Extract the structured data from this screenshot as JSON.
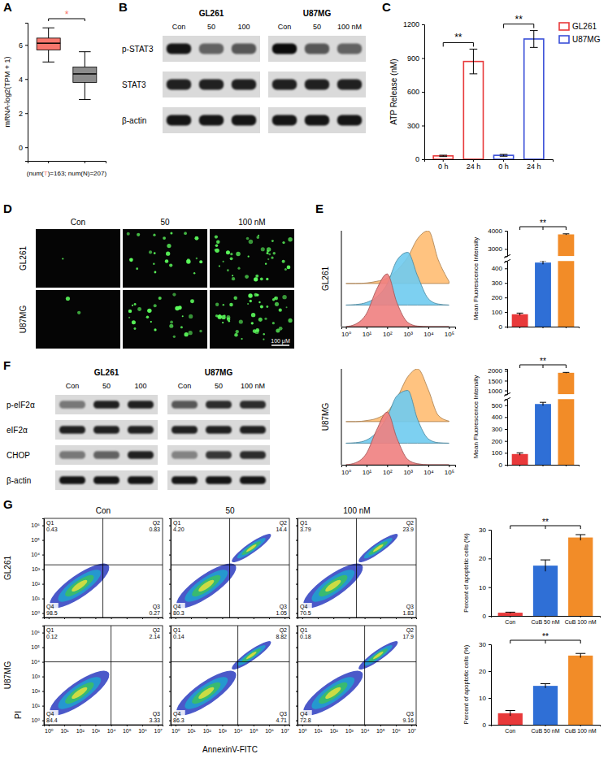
{
  "chart_data": [
    {
      "panel": "A",
      "type": "box",
      "ylabel": "mRNA-log2(TPM + 1)",
      "xlabel_parts": [
        "(num(",
        "T",
        ")=163; num(N)=207)"
      ],
      "categories": [
        null,
        null
      ],
      "boxes": [
        {
          "color": "#f8766d",
          "low": 5,
          "q1": 5.7,
          "median": 6.1,
          "q3": 6.4,
          "high": 7
        },
        {
          "color": "#8c8c8c",
          "low": 2.8,
          "q1": 3.8,
          "median": 4.3,
          "q3": 4.7,
          "high": 5.6
        }
      ],
      "ylim": [
        -0.8,
        7.3
      ],
      "yticks": [
        0,
        2,
        4,
        6
      ],
      "annotations": [
        "*"
      ]
    },
    {
      "panel": "B",
      "type": "blot",
      "groups": [
        {
          "name": "GL261",
          "lanes": [
            "Con",
            "50",
            "100"
          ]
        },
        {
          "name": "U87MG",
          "lanes": [
            "Con",
            "50",
            "100 nM"
          ]
        }
      ],
      "rows": [
        "p-STAT3",
        "STAT3",
        "β-actin"
      ],
      "band_intensity": [
        [
          0.9,
          0.55,
          0.6,
          0.95,
          0.6,
          0.55
        ],
        [
          0.85,
          0.85,
          0.85,
          0.85,
          0.85,
          0.85
        ],
        [
          0.9,
          0.9,
          0.9,
          0.9,
          0.9,
          0.9
        ]
      ]
    },
    {
      "panel": "C",
      "type": "bar",
      "ylabel": "ATP Release (nM)",
      "categories": [
        "0 h",
        "24 h",
        "0 h",
        "24 h"
      ],
      "series": [
        {
          "name": "GL261",
          "color": "#e8393a",
          "values": [
            30,
            870,
            null,
            null
          ],
          "errors": [
            6,
            110,
            null,
            null
          ]
        },
        {
          "name": "U87MG",
          "color": "#3a4fd8",
          "values": [
            null,
            null,
            35,
            1070
          ],
          "errors": [
            null,
            null,
            8,
            75
          ]
        }
      ],
      "ylim": [
        0,
        1200
      ],
      "yticks": [
        0,
        300,
        600,
        900,
        1200
      ],
      "legend": "top-right",
      "annotations": [
        "**",
        "**"
      ]
    },
    {
      "panel": "D",
      "type": "image",
      "columns": [
        "Con",
        "50",
        "100 nM"
      ],
      "rows": [
        "GL261",
        "U87MG"
      ],
      "cells": [
        [
          1,
          22,
          40
        ],
        [
          2,
          26,
          45
        ]
      ],
      "scale_bar": "100 μM"
    },
    {
      "panel": "E",
      "type": "area",
      "title": "GL261",
      "x": [
        1,
        3,
        10,
        30,
        100,
        300,
        1000,
        3000,
        10000,
        30000,
        100000
      ],
      "series": [
        {
          "color": "#f07f7f",
          "values": [
            0,
            5,
            25,
            70,
            100,
            45,
            8,
            1,
            0,
            0,
            0
          ]
        },
        {
          "color": "#6fcbef",
          "values": [
            0,
            1,
            5,
            15,
            40,
            85,
            100,
            55,
            12,
            2,
            0
          ]
        },
        {
          "color": "#ffbd72",
          "values": [
            0,
            0,
            1,
            4,
            10,
            25,
            50,
            85,
            100,
            45,
            4
          ]
        }
      ],
      "log": "x",
      "xlim": [
        0.6,
        200000
      ],
      "xticks": [
        {
          "value": 1,
          "label": "10⁰"
        },
        {
          "value": 10,
          "label": "10¹"
        },
        {
          "value": 100,
          "label": "10²"
        },
        {
          "value": 1000,
          "label": "10³"
        },
        {
          "value": 10000,
          "label": "10⁴"
        },
        {
          "value": 100000,
          "label": "10⁵"
        }
      ],
      "ylim": [
        0,
        100
      ],
      "tick_labels": "x"
    },
    {
      "type": "bar",
      "ylabel": "Mean Fluorescence Intensity",
      "categories": [
        null,
        null,
        null
      ],
      "values": [
        85,
        440,
        3800
      ],
      "errors": [
        8,
        12,
        30
      ],
      "colors": [
        "#e8393a",
        "#2f6fd6",
        "#f28c28"
      ],
      "ylim": [
        [
          0,
          450
        ],
        [
          2600,
          4000
        ]
      ],
      "yticks": [
        [
          0,
          100,
          200,
          300,
          400
        ],
        [
          3000,
          4000
        ]
      ],
      "annotations": [
        "**"
      ]
    },
    {
      "type": "area",
      "title": "U87MG",
      "x": [
        1,
        3,
        10,
        30,
        100,
        300,
        1000,
        3000,
        10000,
        30000,
        100000
      ],
      "series": [
        {
          "color": "#f07f7f",
          "values": [
            0,
            4,
            22,
            65,
            100,
            50,
            10,
            2,
            0,
            0,
            0
          ]
        },
        {
          "color": "#6fcbef",
          "values": [
            0,
            1,
            6,
            20,
            50,
            90,
            100,
            45,
            8,
            1,
            0
          ]
        },
        {
          "color": "#ffbd72",
          "values": [
            0,
            0,
            2,
            6,
            18,
            45,
            85,
            100,
            60,
            12,
            1
          ]
        }
      ],
      "log": "x",
      "xlim": [
        0.6,
        200000
      ],
      "xticks": [
        {
          "value": 1,
          "label": "10⁰"
        },
        {
          "value": 10,
          "label": "10¹"
        },
        {
          "value": 100,
          "label": "10²"
        },
        {
          "value": 1000,
          "label": "10³"
        },
        {
          "value": 10000,
          "label": "10⁴"
        },
        {
          "value": 100000,
          "label": "10⁵"
        }
      ],
      "ylim": [
        0,
        100
      ],
      "tick_labels": "x"
    },
    {
      "type": "bar",
      "ylabel": "Mean Fluorescence Intensity",
      "categories": [
        null,
        null,
        null
      ],
      "values": [
        90,
        510,
        1900
      ],
      "errors": [
        10,
        14,
        20
      ],
      "colors": [
        "#e8393a",
        "#2f6fd6",
        "#f28c28"
      ],
      "ylim": [
        [
          0,
          550
        ],
        [
          800,
          2100
        ]
      ],
      "yticks": [
        [
          0,
          100,
          200,
          300,
          400,
          500
        ],
        [
          1000,
          1500,
          2000
        ]
      ],
      "annotations": [
        "**"
      ]
    },
    {
      "panel": "F",
      "type": "blot",
      "groups": [
        {
          "name": "GL261",
          "lanes": [
            "Con",
            "50",
            "100"
          ]
        },
        {
          "name": "U87MG",
          "lanes": [
            "Con",
            "50",
            "100 nM"
          ]
        }
      ],
      "rows": [
        "p-eIF2α",
        "eIF2α",
        "CHOP",
        "β-actin"
      ],
      "band_intensity": [
        [
          0.45,
          0.85,
          0.85,
          0.6,
          0.8,
          0.8
        ],
        [
          0.85,
          0.85,
          0.85,
          0.85,
          0.85,
          0.85
        ],
        [
          0.45,
          0.55,
          0.85,
          0.4,
          0.75,
          0.8
        ],
        [
          0.9,
          0.9,
          0.9,
          0.9,
          0.9,
          0.9
        ]
      ]
    },
    {
      "panel": "G",
      "type": "flow_grid",
      "columns": [
        "Con",
        "50",
        "100 nM"
      ],
      "xlabel": "AnnexinV-FITC",
      "ylabel": "PI",
      "log": true,
      "xlim": [
        0.5,
        20000000
      ],
      "xticks": [
        {
          "value": 1,
          "label": "10⁰"
        },
        {
          "value": 10,
          "label": "10¹"
        },
        {
          "value": 100,
          "label": "10²"
        },
        {
          "value": 1000,
          "label": "10³"
        },
        {
          "value": 10000,
          "label": "10⁴"
        },
        {
          "value": 100000,
          "label": "10⁵"
        },
        {
          "value": 1000000,
          "label": "10⁶"
        },
        {
          "value": 10000000,
          "label": "10⁷"
        }
      ],
      "rows": [
        {
          "label": "GL261",
          "ylim": [
            0.5,
            3000000
          ],
          "yticks": [
            {
              "value": 1,
              "label": "10⁰"
            },
            {
              "value": 10,
              "label": "10¹"
            },
            {
              "value": 100,
              "label": "10²"
            },
            {
              "value": 1000,
              "label": "10³"
            },
            {
              "value": 10000,
              "label": "10⁴"
            },
            {
              "value": 100000,
              "label": "10⁵"
            },
            {
              "value": 1000000,
              "label": "10⁶"
            }
          ],
          "gate": {
            "x": 3000,
            "y": 2000
          },
          "panels": [
            {
              "quadrants": [
                {
                  "name": "Q1",
                  "value": 0.43
                },
                {
                  "name": "Q2",
                  "value": 0.83
                },
                {
                  "name": "Q3",
                  "value": 0.27
                },
                {
                  "name": "Q4",
                  "value": 98.5
                }
              ]
            },
            {
              "quadrants": [
                {
                  "name": "Q1",
                  "value": 4.2,
                  "label": "4.20"
                },
                {
                  "name": "Q2",
                  "value": 14.4
                },
                {
                  "name": "Q3",
                  "value": 1.05
                },
                {
                  "name": "Q4",
                  "value": 80.3
                }
              ]
            },
            {
              "quadrants": [
                {
                  "name": "Q1",
                  "value": 3.79
                },
                {
                  "name": "Q2",
                  "value": 23.9
                },
                {
                  "name": "Q3",
                  "value": 1.83
                },
                {
                  "name": "Q4",
                  "value": 70.5
                }
              ]
            }
          ]
        },
        {
          "label": "U87MG",
          "ylim": [
            0.5,
            3000000
          ],
          "yticks": [
            {
              "value": 1,
              "label": "10⁰"
            },
            {
              "value": 10,
              "label": "10¹"
            },
            {
              "value": 100,
              "label": "10²"
            },
            {
              "value": 1000,
              "label": "10³"
            },
            {
              "value": 10000,
              "label": "10⁴"
            },
            {
              "value": 100000,
              "label": "10⁵"
            },
            {
              "value": 1000000,
              "label": "10⁶"
            }
          ],
          "gate": {
            "x": 10000,
            "y": 10000
          },
          "panels": [
            {
              "quadrants": [
                {
                  "name": "Q1",
                  "value": 0.12
                },
                {
                  "name": "Q2",
                  "value": 2.14
                },
                {
                  "name": "Q3",
                  "value": 3.33
                },
                {
                  "name": "Q4",
                  "value": 84.4
                }
              ]
            },
            {
              "quadrants": [
                {
                  "name": "Q1",
                  "value": 0.14
                },
                {
                  "name": "Q2",
                  "value": 8.82
                },
                {
                  "name": "Q3",
                  "value": 4.71
                },
                {
                  "name": "Q4",
                  "value": 86.3
                }
              ]
            },
            {
              "quadrants": [
                {
                  "name": "Q1",
                  "value": 0.18
                },
                {
                  "name": "Q2",
                  "value": 17.9
                },
                {
                  "name": "Q3",
                  "value": 9.16
                },
                {
                  "name": "Q4",
                  "value": 72.8
                }
              ]
            }
          ]
        }
      ]
    },
    {
      "type": "bar",
      "ylabel": "Percent of apoptotic cells (%)",
      "categories": [
        "Con",
        "CuB 50 nM",
        "CuB 100 nM"
      ],
      "values": [
        1.1,
        17.5,
        27.3
      ],
      "errors": [
        0.2,
        2,
        1
      ],
      "colors": [
        "#e8393a",
        "#2f6fd6",
        "#f28c28"
      ],
      "ylim": [
        0,
        30
      ],
      "yticks": [
        0,
        10,
        20,
        30
      ],
      "annotations": [
        "**"
      ]
    },
    {
      "type": "bar",
      "ylabel": "Percent of apoptotic cells (%)",
      "categories": [
        "Con",
        "CuB 50 nM",
        "CuB 100 nM"
      ],
      "values": [
        4.3,
        14.5,
        25.8
      ],
      "errors": [
        1,
        0.8,
        0.8
      ],
      "colors": [
        "#e8393a",
        "#2f6fd6",
        "#f28c28"
      ],
      "ylim": [
        0,
        30
      ],
      "yticks": [
        0,
        10,
        20,
        30
      ],
      "annotations": [
        "**"
      ]
    }
  ]
}
